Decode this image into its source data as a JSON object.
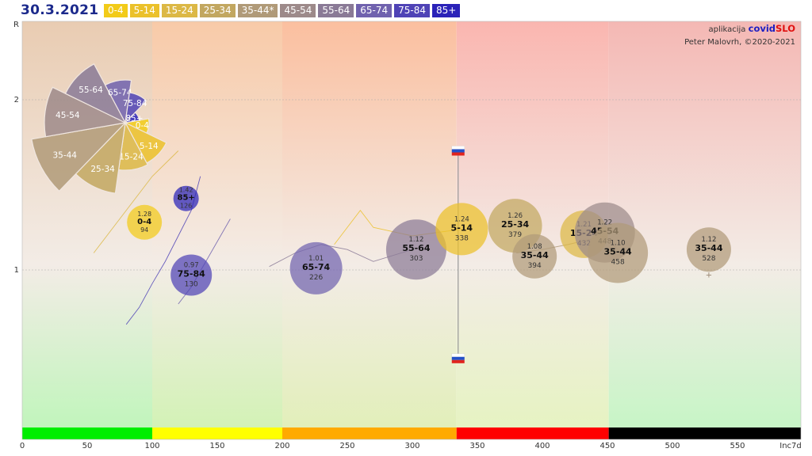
{
  "date": "30.3.2021",
  "credits": {
    "prefix": "aplikacija",
    "brand_a": "covid",
    "brand_b": "SLO",
    "author": "Peter Malovrh, ©2020-2021"
  },
  "colors": {
    "0-4": "#f2cb18",
    "5-14": "#ebc12a",
    "15-24": "#dcb845",
    "25-34": "#c2a760",
    "35-44": "#b09a78",
    "45-54": "#9d8a8a",
    "55-64": "#8a7a96",
    "65-74": "#7062ae",
    "75-84": "#4f43b6",
    "85+": "#2a22b8"
  },
  "legend": [
    "0-4",
    "5-14",
    "15-24",
    "25-34",
    "35-44*",
    "45-54",
    "55-64",
    "65-74",
    "75-84",
    "85+"
  ],
  "chart_data": {
    "type": "scatter",
    "xlabel": "Inc7d",
    "ylabel": "R",
    "xlim": [
      0,
      600
    ],
    "ylim": [
      0,
      2.3
    ],
    "x_ticks": [
      "0",
      "50",
      "100",
      "150",
      "200",
      "250",
      "300",
      "350",
      "400",
      "450",
      "500",
      "550"
    ],
    "y_ticks": [
      "1",
      "2"
    ],
    "bands": [
      {
        "from": 0,
        "to": 100,
        "color": "#00ee00"
      },
      {
        "from": 100,
        "to": 200,
        "color": "#ffff00"
      },
      {
        "from": 200,
        "to": 334,
        "color": "#ffaa00"
      },
      {
        "from": 334,
        "to": 451,
        "color": "#ff0000"
      },
      {
        "from": 451,
        "to": 600,
        "color": "#000000"
      }
    ],
    "national": {
      "x": 334,
      "r_low": 0.48,
      "r_high": 1.7
    },
    "bubbles": [
      {
        "group": "0-4",
        "r": "1.28",
        "inc": "94",
        "x": 94,
        "y": 1.28,
        "size": 22
      },
      {
        "group": "85+",
        "r": "1.42",
        "inc": "126",
        "x": 126,
        "y": 1.42,
        "size": 16
      },
      {
        "group": "75-84",
        "r": "0.97",
        "inc": "130",
        "x": 130,
        "y": 0.97,
        "size": 26
      },
      {
        "group": "65-74",
        "r": "1.01",
        "inc": "226",
        "x": 226,
        "y": 1.01,
        "size": 33
      },
      {
        "group": "55-64",
        "r": "1.12",
        "inc": "303",
        "x": 303,
        "y": 1.12,
        "size": 38
      },
      {
        "group": "5-14",
        "r": "1.24",
        "inc": "338",
        "x": 338,
        "y": 1.24,
        "size": 33
      },
      {
        "group": "25-34",
        "r": "1.26",
        "inc": "379",
        "x": 379,
        "y": 1.26,
        "size": 34
      },
      {
        "group": "35-44",
        "r": "1.08",
        "inc": "394",
        "x": 394,
        "y": 1.08,
        "size": 28
      },
      {
        "group": "15-24",
        "r": "1.21",
        "inc": "432",
        "x": 432,
        "y": 1.21,
        "size": 30
      },
      {
        "group": "45-54",
        "r": "1.22",
        "inc": "448",
        "x": 448,
        "y": 1.22,
        "size": 38
      },
      {
        "group": "35-44",
        "r": "1.10",
        "inc": "458",
        "x": 458,
        "y": 1.1,
        "size": 38
      },
      {
        "group": "35-44",
        "r": "1.12",
        "inc": "528",
        "x": 528,
        "y": 1.12,
        "size": 28
      }
    ],
    "pie": [
      {
        "group": "0-4",
        "value": 2.5
      },
      {
        "group": "5-14",
        "value": 4.8
      },
      {
        "group": "15-24",
        "value": 5.0
      },
      {
        "group": "25-34",
        "value": 7.5
      },
      {
        "group": "35-44",
        "value": 10.0
      },
      {
        "group": "45-54",
        "value": 8.5
      },
      {
        "group": "55-64",
        "value": 7.0
      },
      {
        "group": "65-74",
        "value": 4.5
      },
      {
        "group": "75-84",
        "value": 3.2
      },
      {
        "group": "85+",
        "value": 1.5
      }
    ]
  }
}
